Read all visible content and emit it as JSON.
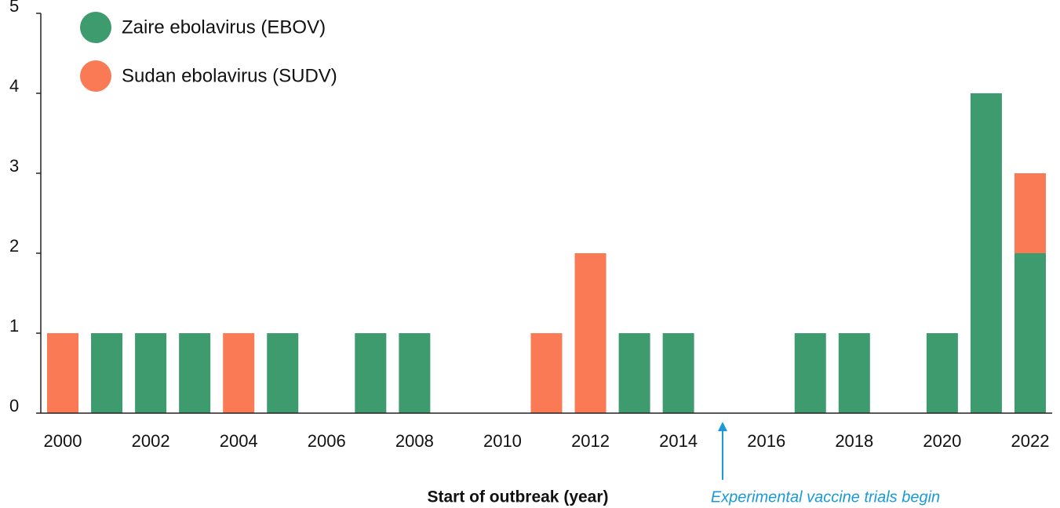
{
  "chart_data": {
    "type": "stacked_bar",
    "x_label": "Start of outbreak (year)",
    "annotation": "Experimental vaccine trials begin",
    "categories": [
      "2000",
      null,
      "2002",
      null,
      "2004",
      null,
      "2006",
      null,
      "2008",
      null,
      "2010",
      null,
      "2012",
      null,
      "2014",
      null,
      "2016",
      null,
      "2018",
      null,
      "2020",
      null,
      "2022"
    ],
    "series": [
      {
        "name": "Zaire ebolavirus (EBOV)",
        "color": "#3d9b6e",
        "values": [
          0,
          1,
          1,
          1,
          0,
          1,
          0,
          1,
          1,
          0,
          0,
          0,
          0,
          1,
          1,
          0,
          0,
          1,
          1,
          0,
          1,
          4,
          2
        ]
      },
      {
        "name": "Sudan ebolavirus (SUDV)",
        "color": "#f97a55",
        "values": [
          1,
          0,
          0,
          0,
          1,
          0,
          0,
          0,
          0,
          0,
          0,
          1,
          2,
          0,
          0,
          0,
          0,
          0,
          0,
          0,
          0,
          0,
          1
        ]
      }
    ],
    "ylim": [
      0,
      5
    ],
    "yticks": [
      0,
      1,
      2,
      3,
      4,
      5
    ],
    "grid": false,
    "legend": "top-left"
  }
}
